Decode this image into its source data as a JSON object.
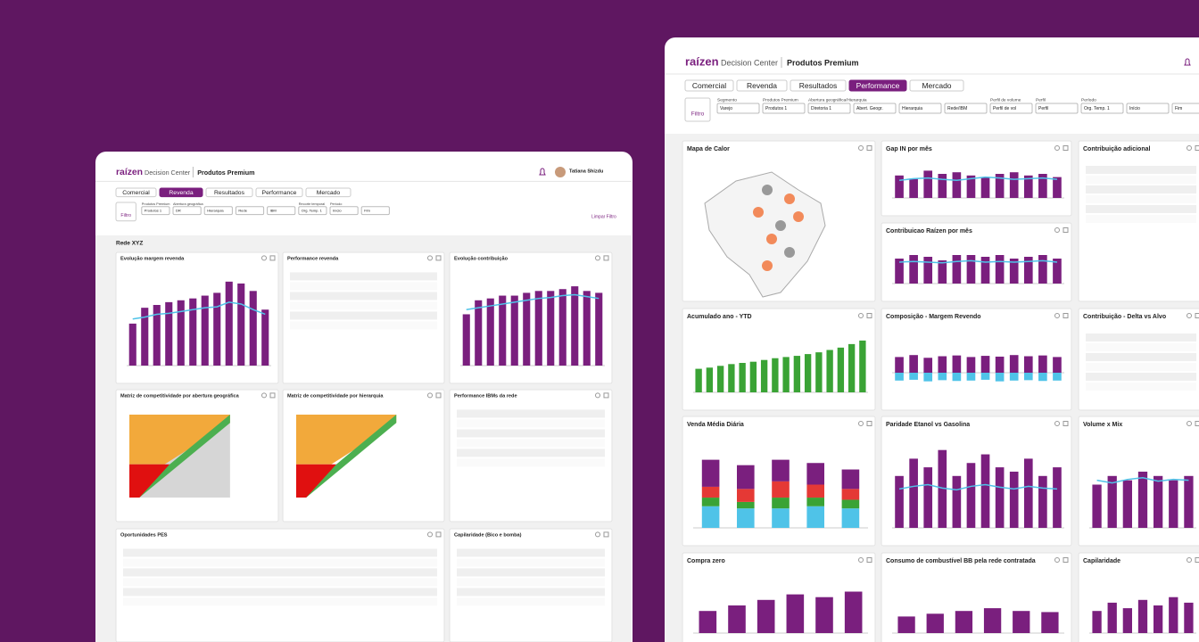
{
  "left": {
    "brand": "raízen",
    "app": "Decision Center",
    "product": "Produtos Premium",
    "user": "Tatiana Shizdu",
    "tabs": [
      "Comercial",
      "Revenda",
      "Resultados",
      "Performance",
      "Mercado"
    ],
    "active_tab": 1,
    "filter_button": "Filtro",
    "filters": [
      {
        "label": "Produtos Premium",
        "value": "Produtos 1"
      },
      {
        "label": "Abertura geográfica",
        "value": "DR"
      },
      {
        "value": "Hierarquia"
      },
      {
        "value": "Rede"
      },
      {
        "value": "IBM"
      },
      {
        "label": "Recorte temporal",
        "value": "Org. Temp. 1"
      },
      {
        "label": "Período",
        "value": "Início"
      },
      {
        "value": "Fim"
      }
    ],
    "clear": "Limpar Filtro",
    "section": "Rede XYZ",
    "panels": [
      {
        "title": "Evolução margem revenda",
        "bars": [
          45,
          62,
          65,
          68,
          70,
          72,
          75,
          78,
          90,
          88,
          80,
          60
        ],
        "line": [
          50,
          52,
          55,
          56,
          58,
          60,
          62,
          63,
          68,
          66,
          60,
          55
        ],
        "ylim": [
          0,
          100
        ],
        "color": "#7a1f7e"
      },
      {
        "title": "Performance revenda"
      },
      {
        "title": "Evolução contribuição",
        "bars": [
          55,
          70,
          72,
          75,
          75,
          78,
          80,
          80,
          82,
          85,
          80,
          78
        ],
        "line": [
          60,
          62,
          64,
          66,
          68,
          70,
          72,
          73,
          75,
          76,
          74,
          72
        ],
        "ylim": [
          0,
          100
        ],
        "color": "#7a1f7e"
      },
      {
        "title": "Matriz de competitividade por abertura geográfica"
      },
      {
        "title": "Matriz de competitividade por hierarquia"
      },
      {
        "title": "Performance IBMs da rede"
      },
      {
        "title": "Oportunidades PES"
      },
      {
        "title": "Capilaridade (Bico e bomba)"
      }
    ]
  },
  "right": {
    "brand": "raízen",
    "app": "Decision Center",
    "product": "Produtos Premium",
    "tabs": [
      "Comercial",
      "Revenda",
      "Resultados",
      "Performance",
      "Mercado"
    ],
    "active_tab": 3,
    "filter_button": "Filtro",
    "filters": [
      {
        "label": "Segmento",
        "value": "Varejo"
      },
      {
        "label": "Produtos Premium",
        "value": "Produtos 1"
      },
      {
        "label": "Abertura geográfica/Hierarquia",
        "value": "Diretoria 1"
      },
      {
        "value": "Abert. Geogr."
      },
      {
        "value": "Hierarquia"
      },
      {
        "value": "Rede/IBM"
      },
      {
        "label": "Perfil de volume",
        "value": "Perfil de vol"
      },
      {
        "label": "Perfil",
        "value": "Perfil"
      },
      {
        "label": "Período",
        "value": "Org. Temp. 1"
      },
      {
        "value": "Início"
      },
      {
        "value": "Fim"
      }
    ],
    "panels": [
      {
        "title": "Mapa de Calor"
      },
      {
        "title": "Gap IN por mês",
        "bars": [
          70,
          60,
          85,
          75,
          80,
          70,
          65,
          75,
          80,
          70,
          75,
          65
        ],
        "line": [
          55,
          60,
          62,
          58,
          55,
          60,
          65,
          62,
          58,
          60,
          62,
          58
        ],
        "ylim": [
          0,
          100
        ],
        "color": "#7a1f7e"
      },
      {
        "title": "Contribuição adicional"
      },
      {
        "title": "Contribuicao Raízen por mês",
        "bars": [
          70,
          80,
          75,
          65,
          80,
          80,
          75,
          80,
          70,
          75,
          80,
          70
        ],
        "line": [
          60,
          62,
          60,
          58,
          62,
          64,
          60,
          62,
          60,
          62,
          64,
          60
        ],
        "ylim": [
          0,
          100
        ],
        "color": "#7a1f7e"
      },
      {
        "title": "Acumulado ano - YTD",
        "bars": [
          40,
          42,
          45,
          48,
          50,
          52,
          55,
          58,
          60,
          62,
          65,
          68,
          72,
          76,
          82,
          88
        ],
        "ylim": [
          0,
          100
        ],
        "color": "#3aa335"
      },
      {
        "title": "Composição - Margem Revendo",
        "bars": [
          40,
          45,
          38,
          42,
          44,
          40,
          43,
          41,
          45,
          42,
          44,
          40
        ],
        "neg": [
          -20,
          -18,
          -22,
          -19,
          -21,
          -20,
          -18,
          -22,
          -20,
          -19,
          -21,
          -20
        ],
        "ylim": [
          -50,
          100
        ],
        "color": "#7a1f7e"
      },
      {
        "title": "Contribuição - Delta vs Alvo"
      },
      {
        "title": "Venda Média Diária",
        "stack": [
          {
            "color": "#4fc3e8",
            "values": [
              20,
              18,
              18,
              20,
              18
            ]
          },
          {
            "color": "#3aa335",
            "values": [
              8,
              6,
              10,
              8,
              8
            ]
          },
          {
            "color": "#e53935",
            "values": [
              10,
              12,
              15,
              12,
              10
            ]
          },
          {
            "color": "#7a1f7e",
            "values": [
              25,
              22,
              20,
              20,
              18
            ]
          }
        ],
        "ylim": [
          0,
          80
        ]
      },
      {
        "title": "Paridade Etanol vs Gasolina",
        "bars": [
          60,
          80,
          70,
          90,
          60,
          75,
          85,
          70,
          65,
          80,
          60,
          70
        ],
        "line": [
          45,
          48,
          50,
          46,
          44,
          48,
          50,
          47,
          45,
          48,
          46,
          45
        ],
        "ylim": [
          0,
          100
        ],
        "color": "#7a1f7e"
      },
      {
        "title": "Volume x Mix",
        "bars": [
          50,
          60,
          55,
          65,
          60,
          55,
          60
        ],
        "line": [
          55,
          52,
          56,
          58,
          54,
          56,
          55
        ],
        "ylim": [
          0,
          100
        ],
        "color": "#7a1f7e"
      },
      {
        "title": "Compra zero",
        "bars": [
          40,
          50,
          60,
          70,
          65,
          75
        ],
        "ylim": [
          0,
          100
        ],
        "color": "#7a1f7e"
      },
      {
        "title": "Consumo de combustível BB pela rede contratada",
        "bars": [
          30,
          35,
          40,
          45,
          40,
          38
        ],
        "ylim": [
          0,
          100
        ],
        "color": "#7a1f7e"
      },
      {
        "title": "Capilaridade",
        "bars": [
          40,
          55,
          45,
          60,
          50,
          65,
          55
        ],
        "ylim": [
          0,
          100
        ],
        "color": "#7a1f7e"
      }
    ]
  }
}
